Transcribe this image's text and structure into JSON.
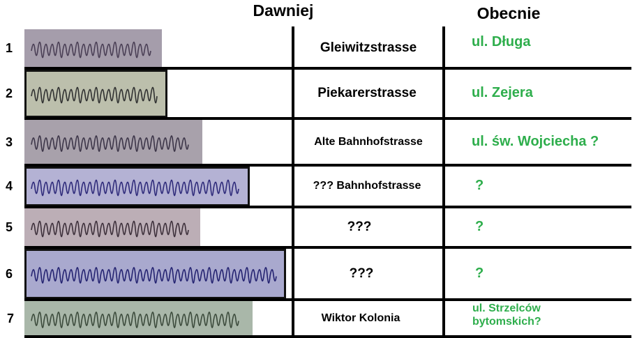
{
  "header": {
    "old": "Dawniej",
    "new": "Obecnie"
  },
  "rows": [
    {
      "number": "1",
      "old": "Gleiwitzstrasse",
      "new": [
        "ul. Długa"
      ]
    },
    {
      "number": "2",
      "old": "Piekarerstrasse",
      "new": [
        "ul. Zejera"
      ]
    },
    {
      "number": "3",
      "old": "Alte Bahnhofstrasse",
      "new": [
        "ul. św. Wojciecha ?"
      ]
    },
    {
      "number": "4",
      "old": "??? Bahnhofstrasse",
      "new": [
        "?"
      ]
    },
    {
      "number": "5",
      "old": "???",
      "new": [
        "?"
      ]
    },
    {
      "number": "6",
      "old": "???",
      "new": [
        "?"
      ]
    },
    {
      "number": "7",
      "old": "Wiktor Kolonia",
      "new": [
        "ul. Strzelców",
        "bytomskich?"
      ]
    }
  ]
}
